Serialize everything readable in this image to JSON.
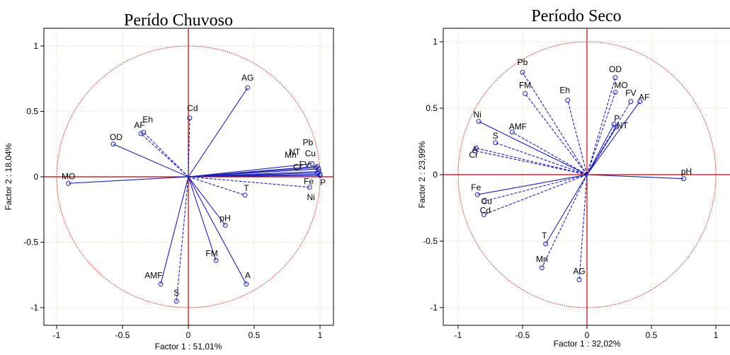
{
  "chart_data": [
    {
      "type": "scatter",
      "title": "Perído Chuvoso",
      "xlabel": "Factor 1 : 51,01%",
      "ylabel": "Factor 2 : 18,04%",
      "xlim": [
        -1.1,
        1.1
      ],
      "ylim": [
        -1.1,
        1.1
      ],
      "xticks": [
        -1,
        -0.5,
        0,
        0.5,
        1
      ],
      "yticks": [
        -1,
        -0.5,
        0,
        0.5,
        1
      ],
      "xtick_labels": [
        "-1",
        "-0.5",
        "0",
        "0.5",
        "1"
      ],
      "ytick_labels": [
        "-1",
        "-0.5",
        "0",
        "0.5",
        "1"
      ],
      "grid": true,
      "unit_circle": true,
      "points": [
        {
          "name": "AG",
          "x": 0.45,
          "y": 0.68,
          "style": "solid"
        },
        {
          "name": "Cd",
          "x": 0.01,
          "y": 0.45,
          "style": "dashed"
        },
        {
          "name": "Eh",
          "x": -0.34,
          "y": 0.34,
          "style": "dashed"
        },
        {
          "name": "AF",
          "x": -0.36,
          "y": 0.33,
          "style": "dashed"
        },
        {
          "name": "OD",
          "x": -0.57,
          "y": 0.25,
          "style": "solid"
        },
        {
          "name": "MO",
          "x": -0.91,
          "y": -0.05,
          "style": "solid"
        },
        {
          "name": "Mn",
          "x": 0.97,
          "y": 0.07,
          "style": "solid"
        },
        {
          "name": "Pb",
          "x": 0.94,
          "y": 0.1,
          "style": "solid"
        },
        {
          "name": "Cu",
          "x": 0.98,
          "y": 0.08,
          "style": "solid"
        },
        {
          "name": "NT",
          "x": 0.99,
          "y": 0.06,
          "style": "solid"
        },
        {
          "name": "FV",
          "x": 0.99,
          "y": 0.04,
          "style": "solid"
        },
        {
          "name": "Cr",
          "x": 0.98,
          "y": 0.03,
          "style": "solid"
        },
        {
          "name": "Fe",
          "x": 1.0,
          "y": 0.02,
          "style": "solid"
        },
        {
          "name": "P",
          "x": 1.0,
          "y": 0.01,
          "style": "solid"
        },
        {
          "name": "Ni",
          "x": 0.92,
          "y": -0.08,
          "style": "dashed"
        },
        {
          "name": "T",
          "x": 0.43,
          "y": -0.14,
          "style": "dashed"
        },
        {
          "name": "pH",
          "x": 0.28,
          "y": -0.37,
          "style": "solid"
        },
        {
          "name": "FM",
          "x": 0.21,
          "y": -0.64,
          "style": "solid"
        },
        {
          "name": "A",
          "x": 0.44,
          "y": -0.82,
          "style": "solid"
        },
        {
          "name": "AMF",
          "x": -0.21,
          "y": -0.82,
          "style": "solid"
        },
        {
          "name": "S",
          "x": -0.09,
          "y": -0.95,
          "style": "dashed"
        }
      ]
    },
    {
      "type": "scatter",
      "title": "Período Seco",
      "xlabel": "Factor 1 : 32,02%",
      "ylabel": "Factor 2 : 23,99%",
      "xlim": [
        -1.1,
        1.1
      ],
      "ylim": [
        -1.1,
        1.1
      ],
      "xticks": [
        -1,
        -0.5,
        0,
        0.5,
        1
      ],
      "yticks": [
        -1,
        -0.5,
        0,
        0.5,
        1
      ],
      "xtick_labels": [
        "-1",
        "-0.5",
        "0",
        "0.5",
        "1"
      ],
      "ytick_labels": [
        "-1",
        "-0.5",
        "0",
        "0.5",
        "1"
      ],
      "grid": true,
      "unit_circle": true,
      "points": [
        {
          "name": "Pb",
          "x": -0.5,
          "y": 0.77,
          "style": "dashed"
        },
        {
          "name": "FM",
          "x": -0.48,
          "y": 0.61,
          "style": "dashed"
        },
        {
          "name": "Eh",
          "x": -0.15,
          "y": 0.56,
          "style": "dashed"
        },
        {
          "name": "OD",
          "x": 0.22,
          "y": 0.73,
          "style": "dashed"
        },
        {
          "name": "MO",
          "x": 0.22,
          "y": 0.62,
          "style": "dashed"
        },
        {
          "name": "FV",
          "x": 0.34,
          "y": 0.55,
          "style": "dashed"
        },
        {
          "name": "AF",
          "x": 0.41,
          "y": 0.55,
          "style": "solid"
        },
        {
          "name": "P",
          "x": 0.21,
          "y": 0.38,
          "style": "solid"
        },
        {
          "name": "NT",
          "x": 0.23,
          "y": 0.36,
          "style": "solid"
        },
        {
          "name": "Ni",
          "x": -0.84,
          "y": 0.4,
          "style": "solid"
        },
        {
          "name": "AMF",
          "x": -0.58,
          "y": 0.32,
          "style": "dashed"
        },
        {
          "name": "S",
          "x": -0.71,
          "y": 0.24,
          "style": "dashed"
        },
        {
          "name": "A",
          "x": -0.86,
          "y": 0.2,
          "style": "dashed"
        },
        {
          "name": "Cr",
          "x": -0.87,
          "y": 0.18,
          "style": "dashed"
        },
        {
          "name": "pH",
          "x": 0.75,
          "y": -0.03,
          "style": "solid"
        },
        {
          "name": "Fe",
          "x": -0.85,
          "y": -0.15,
          "style": "solid"
        },
        {
          "name": "Cu",
          "x": -0.8,
          "y": -0.2,
          "style": "dashed"
        },
        {
          "name": "Cd",
          "x": -0.8,
          "y": -0.3,
          "style": "dashed"
        },
        {
          "name": "T",
          "x": -0.32,
          "y": -0.52,
          "style": "solid"
        },
        {
          "name": "Mn",
          "x": -0.35,
          "y": -0.7,
          "style": "dashed"
        },
        {
          "name": "AG",
          "x": -0.06,
          "y": -0.79,
          "style": "dashed"
        }
      ]
    }
  ]
}
